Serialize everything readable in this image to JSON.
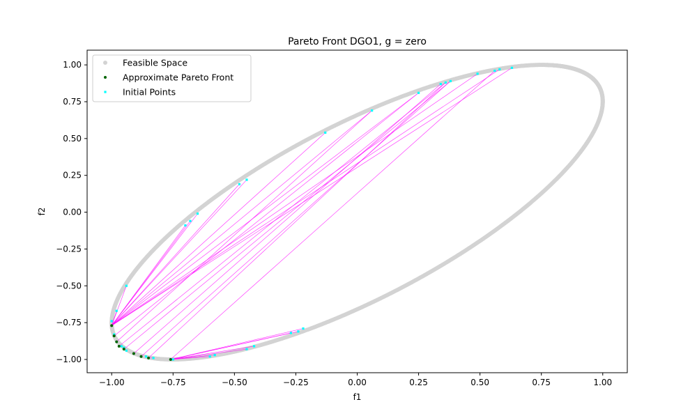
{
  "chart_data": {
    "type": "scatter",
    "title": "Pareto Front DGO1, g = zero",
    "xlabel": "f1",
    "ylabel": "f2",
    "xlim": [
      -1.1,
      1.1
    ],
    "ylim": [
      -1.09,
      1.1
    ],
    "xticks": [
      -1.0,
      -0.75,
      -0.5,
      -0.25,
      0.0,
      0.25,
      0.5,
      0.75,
      1.0
    ],
    "xtick_labels": [
      "−1.00",
      "−0.75",
      "−0.50",
      "−0.25",
      "0.00",
      "0.25",
      "0.50",
      "0.75",
      "1.00"
    ],
    "yticks": [
      -1.0,
      -0.75,
      -0.5,
      -0.25,
      0.0,
      0.25,
      0.5,
      0.75,
      1.0
    ],
    "ytick_labels": [
      "−1.00",
      "−0.75",
      "−0.50",
      "−0.25",
      "0.00",
      "0.25",
      "0.50",
      "0.75",
      "1.00"
    ],
    "grid": false,
    "legend_position": "top-left",
    "legend": [
      {
        "label": "Feasible Space",
        "color": "#d3d3d3"
      },
      {
        "label": "Approximate Pareto Front",
        "color": "#006400"
      },
      {
        "label": "Initial Points",
        "color": "#00ffff"
      }
    ],
    "series": [
      {
        "name": "Feasible Space",
        "color": "#d3d3d3",
        "kind": "curve",
        "t_range": [
          -5.4,
          1.3
        ]
      },
      {
        "name": "Approximate Pareto Front",
        "color": "#006400",
        "points": [
          [
            -1.0,
            -0.77
          ],
          [
            -0.99,
            -0.84
          ],
          [
            -0.98,
            -0.88
          ],
          [
            -0.95,
            -0.93
          ],
          [
            -0.91,
            -0.96
          ],
          [
            -0.88,
            -0.98
          ],
          [
            -0.85,
            -0.99
          ],
          [
            -0.76,
            -1.0
          ],
          [
            -0.97,
            -0.91
          ]
        ]
      },
      {
        "name": "Initial Points",
        "color": "#00ffff",
        "points": [
          [
            0.63,
            0.98
          ],
          [
            0.58,
            0.97
          ],
          [
            0.56,
            0.96
          ],
          [
            0.49,
            0.94
          ],
          [
            0.38,
            0.89
          ],
          [
            0.36,
            0.88
          ],
          [
            0.34,
            0.87
          ],
          [
            0.25,
            0.81
          ],
          [
            0.06,
            0.69
          ],
          [
            -0.13,
            0.54
          ],
          [
            -0.45,
            0.22
          ],
          [
            -0.48,
            0.19
          ],
          [
            -0.65,
            -0.01
          ],
          [
            -0.68,
            -0.06
          ],
          [
            -0.7,
            -0.09
          ],
          [
            -0.94,
            -0.5
          ],
          [
            -0.98,
            -0.67
          ],
          [
            -1.0,
            -0.74
          ],
          [
            -0.99,
            -0.83
          ],
          [
            -0.98,
            -0.88
          ],
          [
            -0.96,
            -0.91
          ],
          [
            -0.95,
            -0.92
          ],
          [
            -0.94,
            -0.94
          ],
          [
            -0.86,
            -0.98
          ],
          [
            -0.83,
            -0.99
          ],
          [
            -0.75,
            -1.0
          ],
          [
            -0.58,
            -0.97
          ],
          [
            -0.6,
            -0.98
          ],
          [
            -0.45,
            -0.93
          ],
          [
            -0.42,
            -0.91
          ],
          [
            -0.22,
            -0.79
          ],
          [
            -0.24,
            -0.81
          ],
          [
            -0.27,
            -0.82
          ]
        ]
      },
      {
        "name": "Connections",
        "color": "#ff00ff",
        "segments": [
          [
            [
              0.63,
              0.98
            ],
            [
              -1.0,
              -0.77
            ]
          ],
          [
            [
              0.58,
              0.97
            ],
            [
              -1.0,
              -0.77
            ]
          ],
          [
            [
              0.56,
              0.96
            ],
            [
              -0.76,
              -1.0
            ]
          ],
          [
            [
              0.49,
              0.94
            ],
            [
              -1.0,
              -0.77
            ]
          ],
          [
            [
              0.38,
              0.89
            ],
            [
              -0.88,
              -0.98
            ]
          ],
          [
            [
              0.36,
              0.88
            ],
            [
              -0.85,
              -0.99
            ]
          ],
          [
            [
              0.34,
              0.87
            ],
            [
              -0.91,
              -0.96
            ]
          ],
          [
            [
              0.25,
              0.81
            ],
            [
              -1.0,
              -0.77
            ]
          ],
          [
            [
              0.06,
              0.69
            ],
            [
              -1.0,
              -0.77
            ]
          ],
          [
            [
              -0.13,
              0.54
            ],
            [
              -1.0,
              -0.77
            ]
          ],
          [
            [
              -0.45,
              0.22
            ],
            [
              -1.0,
              -0.77
            ]
          ],
          [
            [
              -0.48,
              0.19
            ],
            [
              -1.0,
              -0.77
            ]
          ],
          [
            [
              -0.65,
              -0.01
            ],
            [
              -1.0,
              -0.77
            ]
          ],
          [
            [
              -0.68,
              -0.06
            ],
            [
              -1.0,
              -0.77
            ]
          ],
          [
            [
              -0.7,
              -0.09
            ],
            [
              -1.0,
              -0.77
            ]
          ],
          [
            [
              -0.94,
              -0.5
            ],
            [
              -1.0,
              -0.77
            ]
          ],
          [
            [
              -0.98,
              -0.67
            ],
            [
              -1.0,
              -0.77
            ]
          ],
          [
            [
              -0.22,
              -0.79
            ],
            [
              -0.76,
              -1.0
            ]
          ],
          [
            [
              -0.24,
              -0.81
            ],
            [
              -0.76,
              -1.0
            ]
          ],
          [
            [
              -0.27,
              -0.82
            ],
            [
              -0.76,
              -1.0
            ]
          ],
          [
            [
              -0.42,
              -0.91
            ],
            [
              -0.76,
              -1.0
            ]
          ],
          [
            [
              -0.45,
              -0.93
            ],
            [
              -0.76,
              -1.0
            ]
          ],
          [
            [
              -0.58,
              -0.97
            ],
            [
              -0.76,
              -1.0
            ]
          ],
          [
            [
              -0.6,
              -0.98
            ],
            [
              -0.76,
              -1.0
            ]
          ],
          [
            [
              -0.75,
              -1.0
            ],
            [
              -0.76,
              -1.0
            ]
          ],
          [
            [
              -0.83,
              -0.99
            ],
            [
              -0.85,
              -0.99
            ]
          ],
          [
            [
              0.38,
              0.89
            ],
            [
              -0.95,
              -0.93
            ]
          ],
          [
            [
              0.06,
              0.69
            ],
            [
              -0.98,
              -0.88
            ]
          ],
          [
            [
              0.36,
              0.88
            ],
            [
              -0.97,
              -0.91
            ]
          ],
          [
            [
              0.25,
              0.81
            ],
            [
              -0.99,
              -0.84
            ]
          ]
        ]
      }
    ]
  }
}
